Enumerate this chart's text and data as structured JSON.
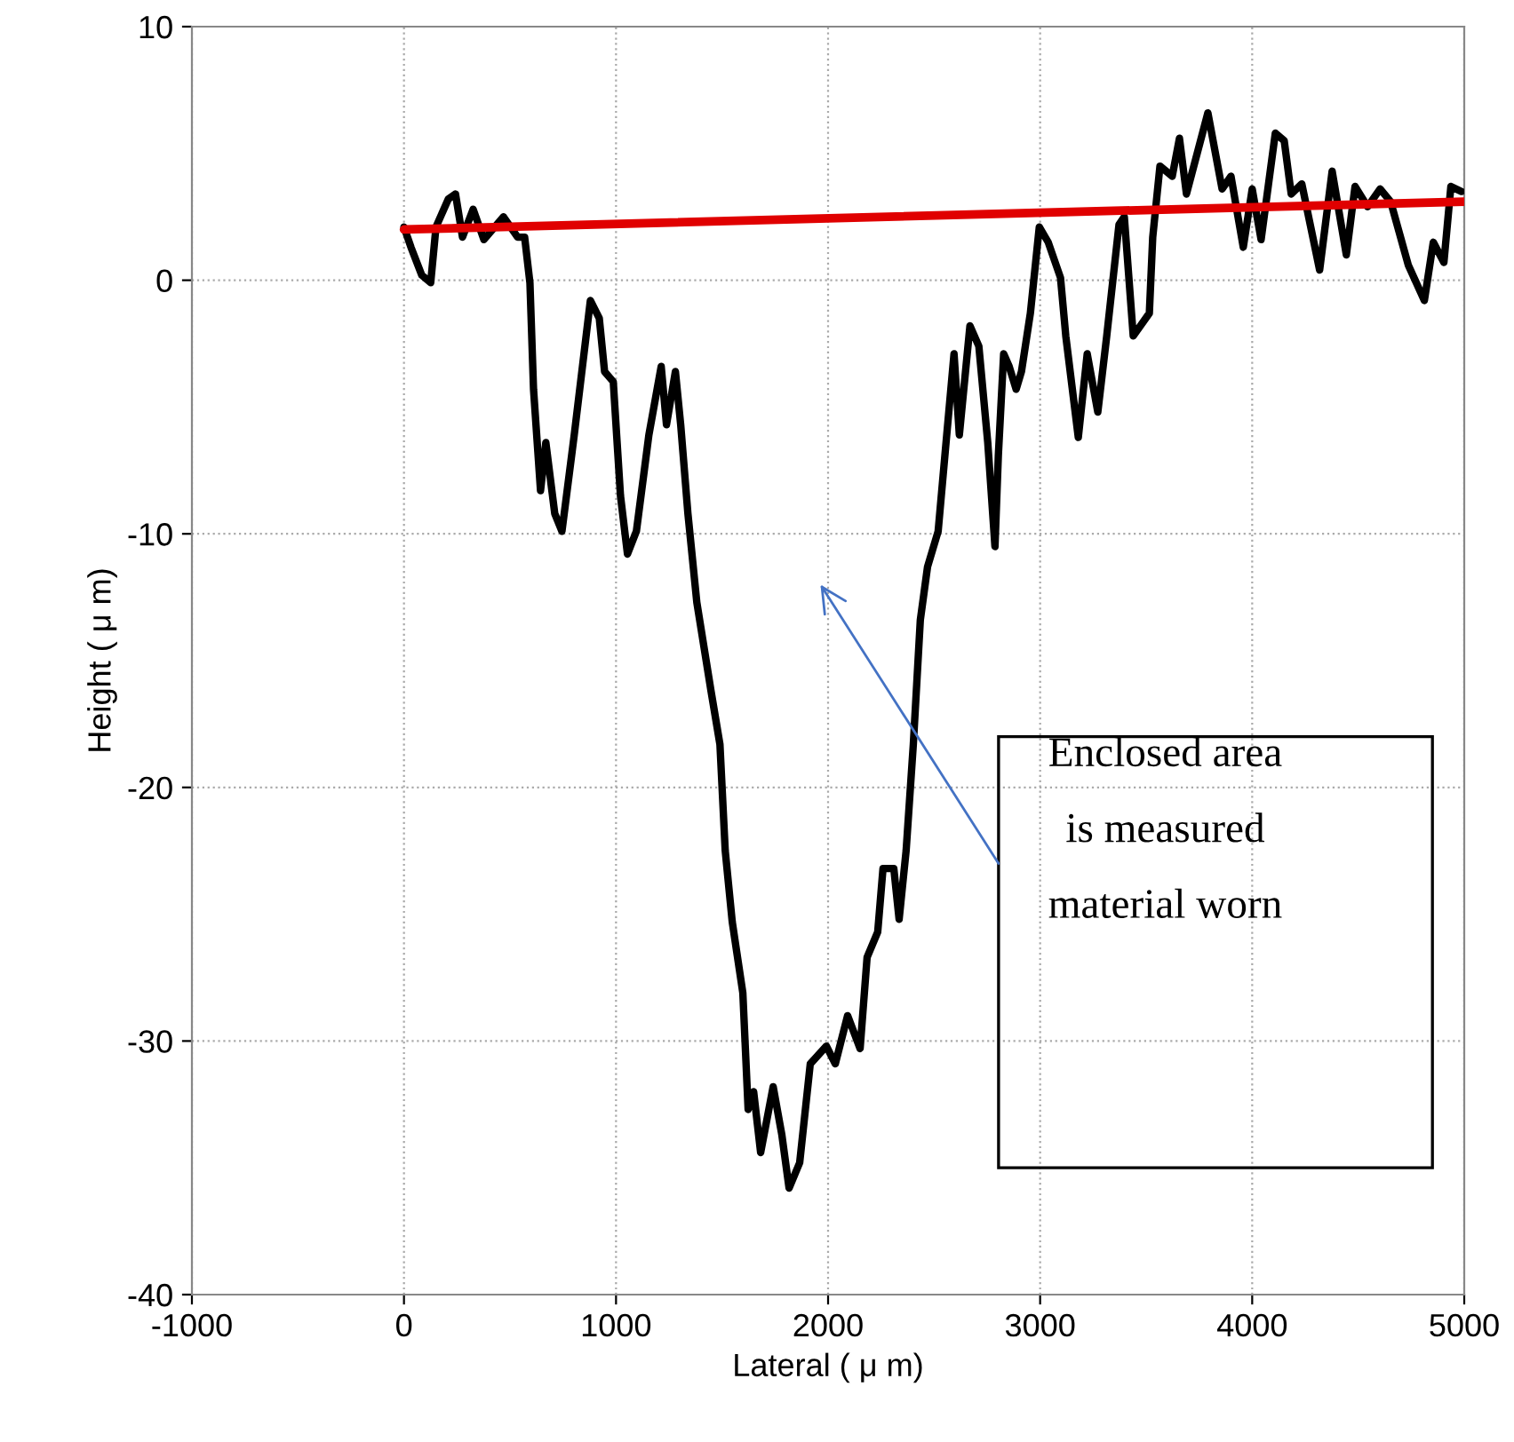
{
  "chart_data": {
    "type": "line",
    "xlabel": "Lateral ( μ m)",
    "ylabel": "Height ( μ m)",
    "xlim": [
      -1000,
      5000
    ],
    "xticks": [
      -1000,
      0,
      1000,
      2000,
      3000,
      4000,
      5000
    ],
    "ylim": [
      -40,
      10
    ],
    "yticks": [
      -40,
      -30,
      -20,
      -10,
      0,
      10
    ],
    "grid": true,
    "legend": false,
    "series": [
      {
        "color": "#000000",
        "x": [
          0,
          33,
          84,
          126,
          151,
          209,
          243,
          276,
          326,
          377,
          469,
          536,
          569,
          594,
          611,
          644,
          669,
          711,
          745,
          803,
          879,
          921,
          946,
          987,
          1021,
          1054,
          1096,
          1155,
          1213,
          1238,
          1280,
          1305,
          1339,
          1381,
          1448,
          1490,
          1515,
          1548,
          1598,
          1623,
          1649,
          1682,
          1741,
          1782,
          1816,
          1866,
          1916,
          1992,
          2034,
          2092,
          2151,
          2184,
          2234,
          2259,
          2310,
          2335,
          2368,
          2402,
          2435,
          2469,
          2519,
          2552,
          2594,
          2619,
          2669,
          2711,
          2753,
          2787,
          2803,
          2828,
          2854,
          2887,
          2912,
          2954,
          2996,
          3038,
          3096,
          3121,
          3180,
          3222,
          3272,
          3314,
          3372,
          3397,
          3439,
          3515,
          3531,
          3565,
          3623,
          3657,
          3690,
          3791,
          3858,
          3900,
          3958,
          4000,
          4042,
          4109,
          4151,
          4184,
          4234,
          4318,
          4377,
          4444,
          4485,
          4544,
          4603,
          4653,
          4736,
          4812,
          4854,
          4904,
          4937,
          4987
        ],
        "values": [
          2.1,
          1.3,
          0.2,
          -0.1,
          2.1,
          3.2,
          3.4,
          1.7,
          2.8,
          1.6,
          2.5,
          1.7,
          1.7,
          -0.1,
          -4.3,
          -8.3,
          -6.4,
          -9.2,
          -9.9,
          -6.1,
          -0.8,
          -1.5,
          -3.6,
          -4.0,
          -8.5,
          -10.8,
          -9.9,
          -6.1,
          -3.4,
          -5.7,
          -3.6,
          -5.7,
          -9.2,
          -12.7,
          -16.2,
          -18.3,
          -22.5,
          -25.3,
          -28.1,
          -32.7,
          -32.0,
          -34.4,
          -31.8,
          -33.7,
          -35.8,
          -34.8,
          -30.9,
          -30.2,
          -30.9,
          -29.0,
          -30.3,
          -26.7,
          -25.7,
          -23.2,
          -23.2,
          -25.2,
          -22.5,
          -18.3,
          -13.4,
          -11.3,
          -9.9,
          -6.8,
          -2.9,
          -6.1,
          -1.8,
          -2.6,
          -6.4,
          -10.5,
          -6.9,
          -2.9,
          -3.4,
          -4.3,
          -3.6,
          -1.3,
          2.1,
          1.5,
          0.1,
          -2.2,
          -6.2,
          -2.9,
          -5.2,
          -2.2,
          2.2,
          2.5,
          -2.2,
          -1.3,
          1.7,
          4.5,
          4.1,
          5.6,
          3.4,
          6.6,
          3.6,
          4.1,
          1.3,
          3.6,
          1.6,
          5.8,
          5.5,
          3.4,
          3.8,
          0.4,
          4.3,
          1.0,
          3.7,
          2.9,
          3.6,
          3.1,
          0.6,
          -0.8,
          1.5,
          0.7,
          3.7,
          3.5
        ]
      },
      {
        "color": "#e00000",
        "x": [
          0,
          5000
        ],
        "values": [
          2.0,
          3.1
        ]
      }
    ],
    "annotations": [
      "Enclosed area\nis measured\nmaterial worn"
    ]
  }
}
